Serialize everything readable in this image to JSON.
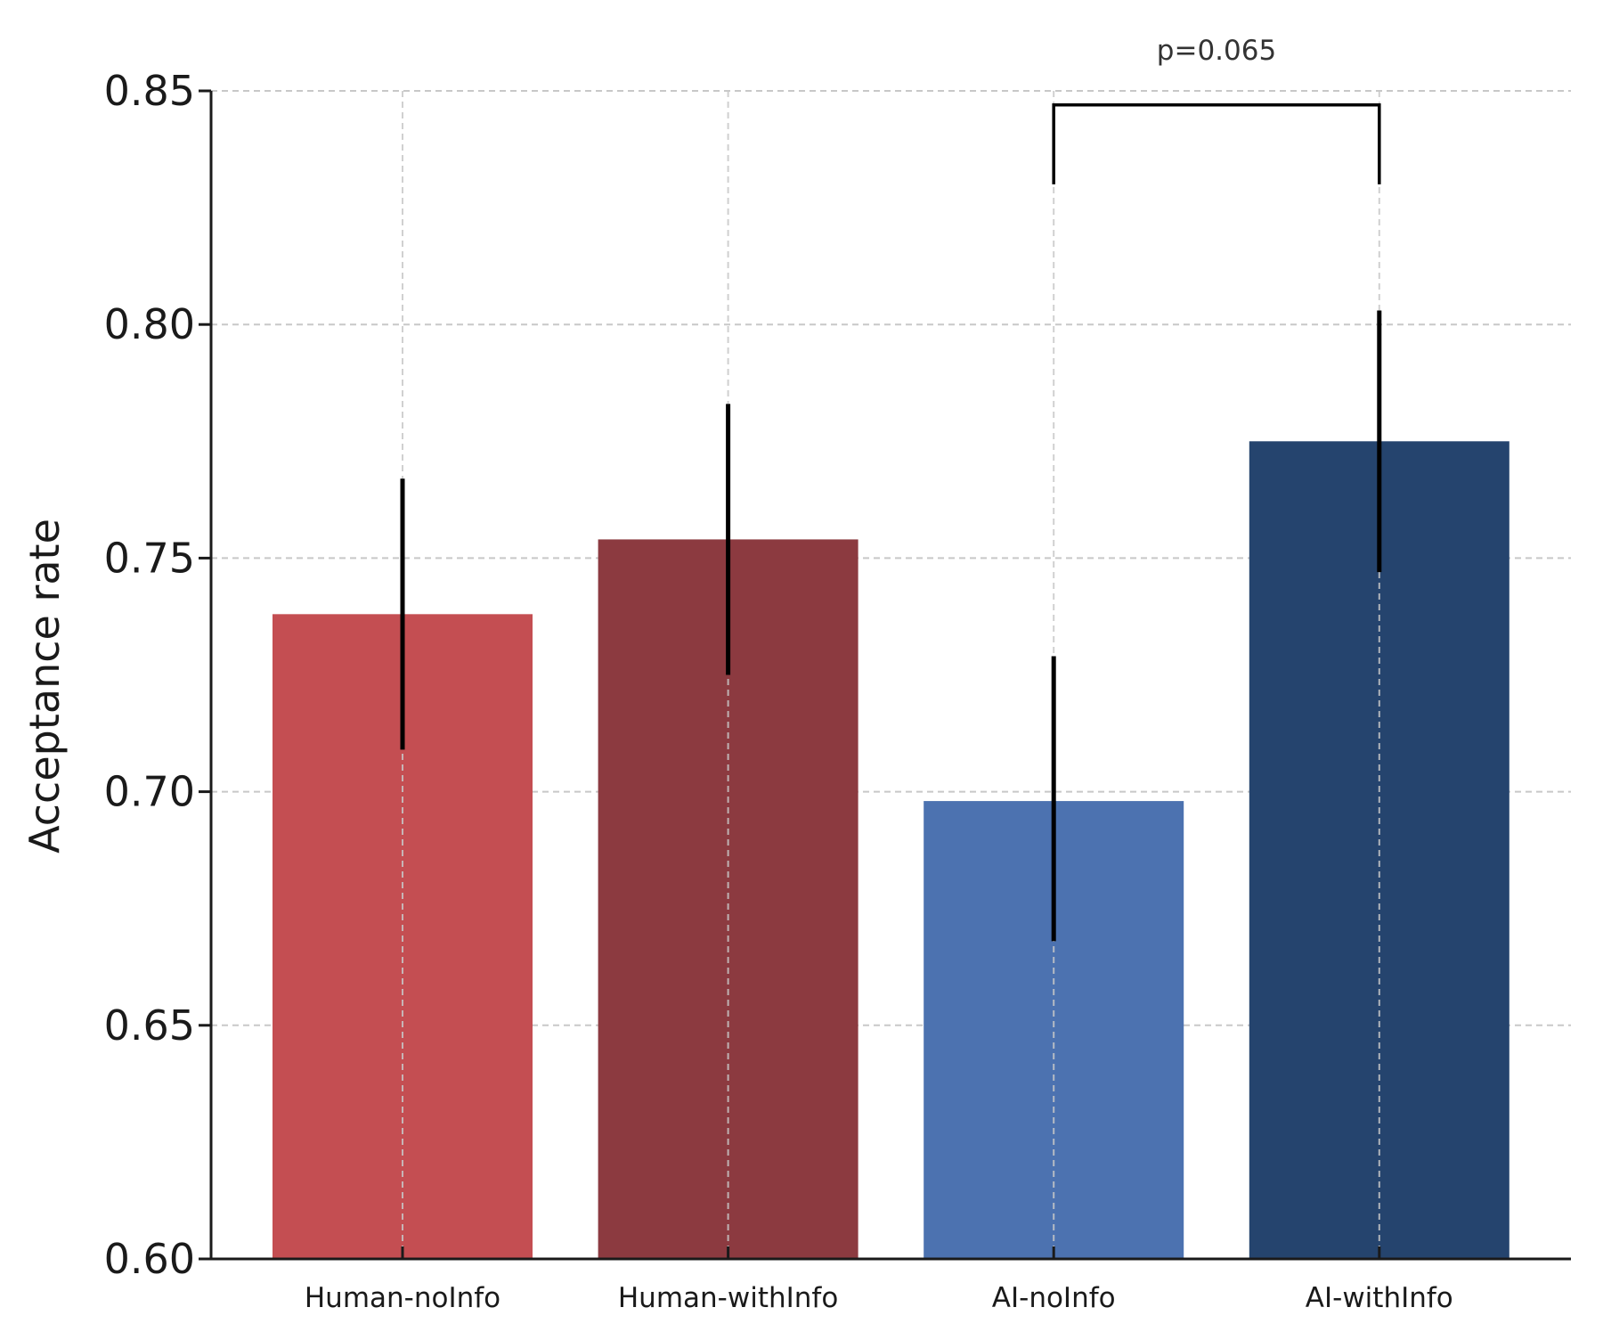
{
  "chart_data": {
    "type": "bar",
    "title": "",
    "xlabel": "",
    "ylabel": "Acceptance rate",
    "ylim": [
      0.6,
      0.85
    ],
    "yticks": [
      0.6,
      0.65,
      0.7,
      0.75,
      0.8,
      0.85
    ],
    "ytick_labels": [
      "0.60",
      "0.65",
      "0.70",
      "0.75",
      "0.80",
      "0.85"
    ],
    "grid": true,
    "categories": [
      "Human-noInfo",
      "Human-withInfo",
      "AI-noInfo",
      "AI-withInfo"
    ],
    "values": [
      0.738,
      0.754,
      0.698,
      0.775
    ],
    "error_low": [
      0.709,
      0.725,
      0.668,
      0.747
    ],
    "error_high": [
      0.767,
      0.783,
      0.729,
      0.803
    ],
    "bar_colors": [
      "#c44e52",
      "#8c3a40",
      "#4c72b0",
      "#25446e"
    ],
    "annotation": {
      "from_category": "AI-noInfo",
      "to_category": "AI-withInfo",
      "bracket_bottom": 0.83,
      "bracket_top": 0.847,
      "label": "p=0.065"
    }
  }
}
